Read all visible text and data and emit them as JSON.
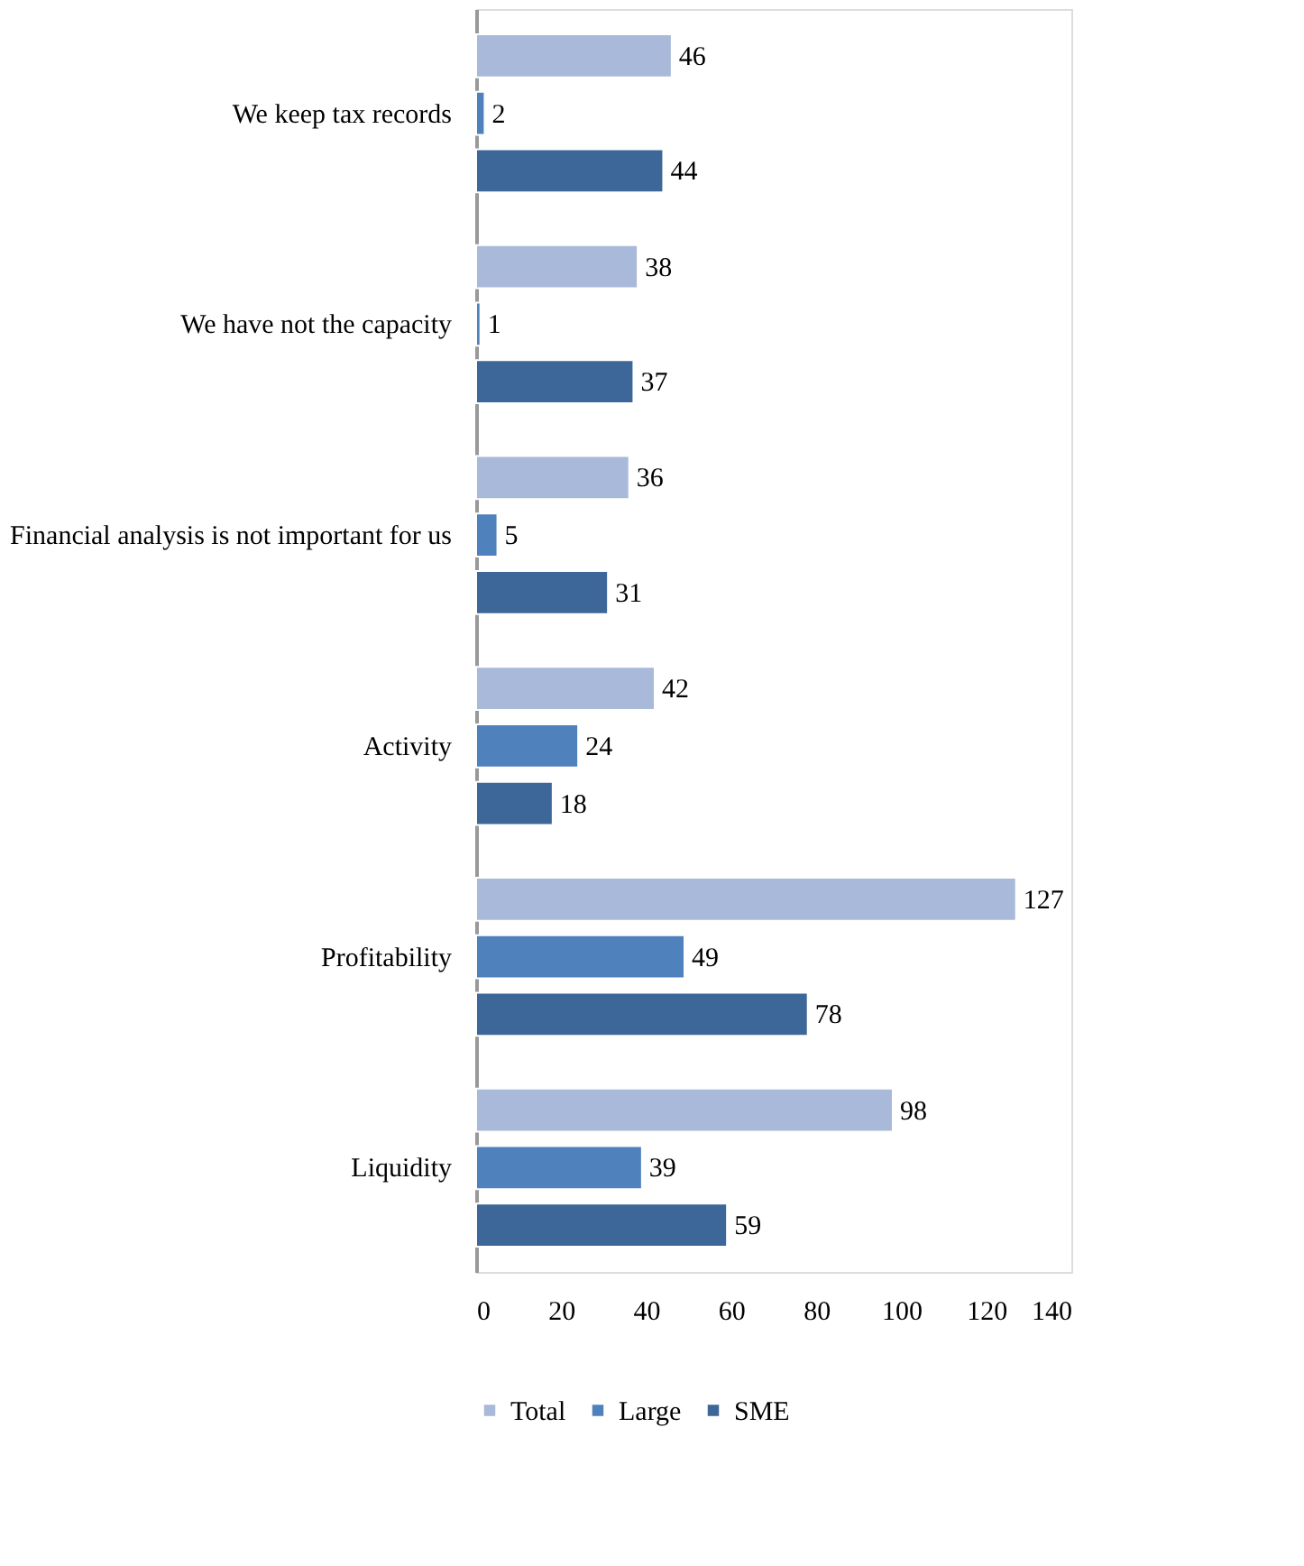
{
  "chart_data": {
    "type": "bar",
    "orientation": "horizontal",
    "categories": [
      "We keep tax records",
      "We have not the capacity",
      "Financial analysis is not important for us",
      "Activity",
      "Profitability",
      "Liquidity"
    ],
    "series": [
      {
        "name": "Total",
        "color": "#a9b9d9",
        "values": [
          46,
          38,
          36,
          42,
          127,
          98
        ]
      },
      {
        "name": "Large",
        "color": "#4f81bd",
        "values": [
          2,
          1,
          5,
          24,
          49,
          39
        ]
      },
      {
        "name": "SME",
        "color": "#3d6699",
        "values": [
          44,
          37,
          31,
          18,
          78,
          59
        ]
      }
    ],
    "xlim": [
      0,
      140
    ],
    "xticks": [
      0,
      20,
      40,
      60,
      80,
      100,
      120,
      140
    ],
    "data_labels": true,
    "legend": "bottom",
    "grid": false
  }
}
